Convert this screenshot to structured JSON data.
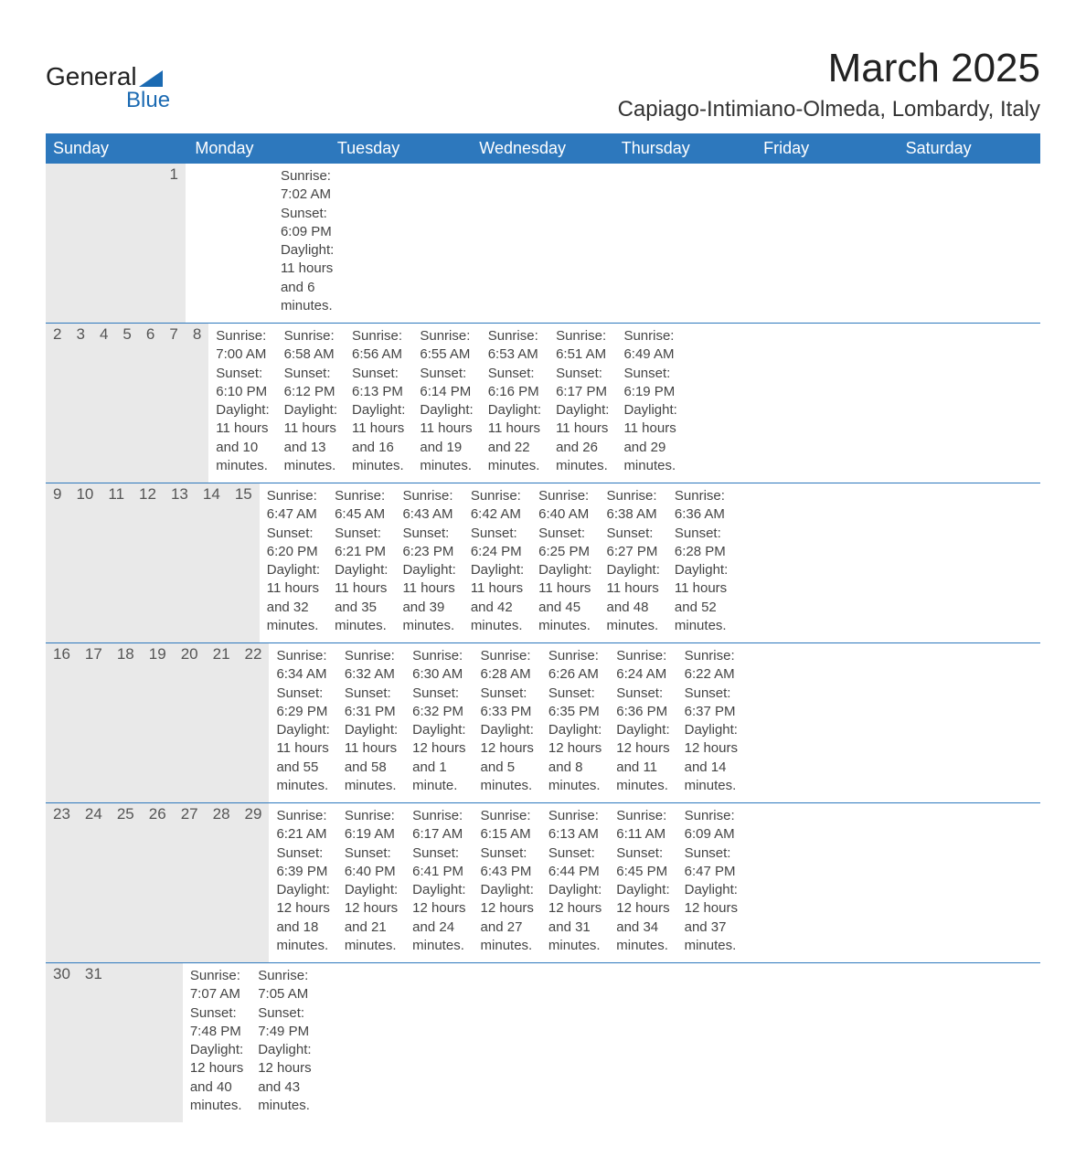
{
  "logo": {
    "text1": "General",
    "text2": "Blue"
  },
  "title": "March 2025",
  "location": "Capiago-Intimiano-Olmeda, Lombardy, Italy",
  "colors": {
    "header_bg": "#2d78bd",
    "header_text": "#ffffff",
    "daynum_bg": "#e9e9e9",
    "text": "#444444",
    "week_border": "#2d78bd"
  },
  "day_names": [
    "Sunday",
    "Monday",
    "Tuesday",
    "Wednesday",
    "Thursday",
    "Friday",
    "Saturday"
  ],
  "weeks": [
    [
      null,
      null,
      null,
      null,
      null,
      null,
      {
        "n": "1",
        "sunrise": "7:02 AM",
        "sunset": "6:09 PM",
        "daylight": "11 hours and 6 minutes."
      }
    ],
    [
      {
        "n": "2",
        "sunrise": "7:00 AM",
        "sunset": "6:10 PM",
        "daylight": "11 hours and 10 minutes."
      },
      {
        "n": "3",
        "sunrise": "6:58 AM",
        "sunset": "6:12 PM",
        "daylight": "11 hours and 13 minutes."
      },
      {
        "n": "4",
        "sunrise": "6:56 AM",
        "sunset": "6:13 PM",
        "daylight": "11 hours and 16 minutes."
      },
      {
        "n": "5",
        "sunrise": "6:55 AM",
        "sunset": "6:14 PM",
        "daylight": "11 hours and 19 minutes."
      },
      {
        "n": "6",
        "sunrise": "6:53 AM",
        "sunset": "6:16 PM",
        "daylight": "11 hours and 22 minutes."
      },
      {
        "n": "7",
        "sunrise": "6:51 AM",
        "sunset": "6:17 PM",
        "daylight": "11 hours and 26 minutes."
      },
      {
        "n": "8",
        "sunrise": "6:49 AM",
        "sunset": "6:19 PM",
        "daylight": "11 hours and 29 minutes."
      }
    ],
    [
      {
        "n": "9",
        "sunrise": "6:47 AM",
        "sunset": "6:20 PM",
        "daylight": "11 hours and 32 minutes."
      },
      {
        "n": "10",
        "sunrise": "6:45 AM",
        "sunset": "6:21 PM",
        "daylight": "11 hours and 35 minutes."
      },
      {
        "n": "11",
        "sunrise": "6:43 AM",
        "sunset": "6:23 PM",
        "daylight": "11 hours and 39 minutes."
      },
      {
        "n": "12",
        "sunrise": "6:42 AM",
        "sunset": "6:24 PM",
        "daylight": "11 hours and 42 minutes."
      },
      {
        "n": "13",
        "sunrise": "6:40 AM",
        "sunset": "6:25 PM",
        "daylight": "11 hours and 45 minutes."
      },
      {
        "n": "14",
        "sunrise": "6:38 AM",
        "sunset": "6:27 PM",
        "daylight": "11 hours and 48 minutes."
      },
      {
        "n": "15",
        "sunrise": "6:36 AM",
        "sunset": "6:28 PM",
        "daylight": "11 hours and 52 minutes."
      }
    ],
    [
      {
        "n": "16",
        "sunrise": "6:34 AM",
        "sunset": "6:29 PM",
        "daylight": "11 hours and 55 minutes."
      },
      {
        "n": "17",
        "sunrise": "6:32 AM",
        "sunset": "6:31 PM",
        "daylight": "11 hours and 58 minutes."
      },
      {
        "n": "18",
        "sunrise": "6:30 AM",
        "sunset": "6:32 PM",
        "daylight": "12 hours and 1 minute."
      },
      {
        "n": "19",
        "sunrise": "6:28 AM",
        "sunset": "6:33 PM",
        "daylight": "12 hours and 5 minutes."
      },
      {
        "n": "20",
        "sunrise": "6:26 AM",
        "sunset": "6:35 PM",
        "daylight": "12 hours and 8 minutes."
      },
      {
        "n": "21",
        "sunrise": "6:24 AM",
        "sunset": "6:36 PM",
        "daylight": "12 hours and 11 minutes."
      },
      {
        "n": "22",
        "sunrise": "6:22 AM",
        "sunset": "6:37 PM",
        "daylight": "12 hours and 14 minutes."
      }
    ],
    [
      {
        "n": "23",
        "sunrise": "6:21 AM",
        "sunset": "6:39 PM",
        "daylight": "12 hours and 18 minutes."
      },
      {
        "n": "24",
        "sunrise": "6:19 AM",
        "sunset": "6:40 PM",
        "daylight": "12 hours and 21 minutes."
      },
      {
        "n": "25",
        "sunrise": "6:17 AM",
        "sunset": "6:41 PM",
        "daylight": "12 hours and 24 minutes."
      },
      {
        "n": "26",
        "sunrise": "6:15 AM",
        "sunset": "6:43 PM",
        "daylight": "12 hours and 27 minutes."
      },
      {
        "n": "27",
        "sunrise": "6:13 AM",
        "sunset": "6:44 PM",
        "daylight": "12 hours and 31 minutes."
      },
      {
        "n": "28",
        "sunrise": "6:11 AM",
        "sunset": "6:45 PM",
        "daylight": "12 hours and 34 minutes."
      },
      {
        "n": "29",
        "sunrise": "6:09 AM",
        "sunset": "6:47 PM",
        "daylight": "12 hours and 37 minutes."
      }
    ],
    [
      {
        "n": "30",
        "sunrise": "7:07 AM",
        "sunset": "7:48 PM",
        "daylight": "12 hours and 40 minutes."
      },
      {
        "n": "31",
        "sunrise": "7:05 AM",
        "sunset": "7:49 PM",
        "daylight": "12 hours and 43 minutes."
      },
      null,
      null,
      null,
      null,
      null
    ]
  ],
  "labels": {
    "sunrise": "Sunrise: ",
    "sunset": "Sunset: ",
    "daylight": "Daylight: "
  }
}
